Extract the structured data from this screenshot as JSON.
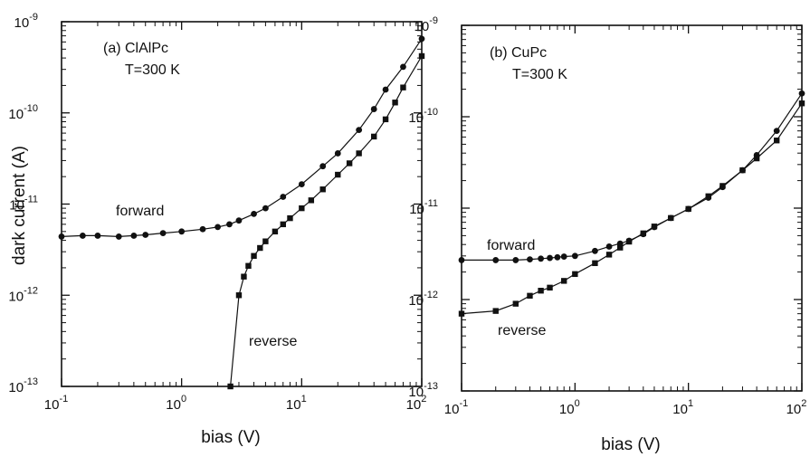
{
  "chart_data": [
    {
      "type": "scatter",
      "panel_label": "(a) ClAlPc",
      "temperature_label": "T=300 K",
      "xlabel": "bias (V)",
      "ylabel": "dark current (A)",
      "xscale": "log",
      "yscale": "log",
      "xlim": [
        0.1,
        100
      ],
      "ylim": [
        1e-13,
        1e-09
      ],
      "xticks": [
        {
          "value": 0.1,
          "base": "10",
          "exp": "-1"
        },
        {
          "value": 1,
          "base": "10",
          "exp": "0"
        },
        {
          "value": 10,
          "base": "10",
          "exp": "1"
        },
        {
          "value": 100,
          "base": "10",
          "exp": "2"
        }
      ],
      "yticks": [
        {
          "value": 1e-13,
          "base": "10",
          "exp": "-13"
        },
        {
          "value": 1e-12,
          "base": "10",
          "exp": "-12"
        },
        {
          "value": 1e-11,
          "base": "10",
          "exp": "-11"
        },
        {
          "value": 1e-10,
          "base": "10",
          "exp": "-10"
        },
        {
          "value": 1e-09,
          "base": "10",
          "exp": "-9"
        }
      ],
      "series": [
        {
          "name": "forward",
          "marker": "circle",
          "x": [
            0.1,
            0.15,
            0.2,
            0.3,
            0.4,
            0.5,
            0.7,
            1.0,
            1.5,
            2.0,
            2.5,
            3.0,
            4.0,
            5.0,
            7.0,
            10,
            15,
            20,
            30,
            40,
            50,
            70,
            100
          ],
          "y": [
            4.4e-12,
            4.5e-12,
            4.5e-12,
            4.4e-12,
            4.5e-12,
            4.6e-12,
            4.8e-12,
            5e-12,
            5.3e-12,
            5.6e-12,
            6e-12,
            6.6e-12,
            7.8e-12,
            9e-12,
            1.2e-11,
            1.65e-11,
            2.6e-11,
            3.6e-11,
            6.5e-11,
            1.1e-10,
            1.8e-10,
            3.2e-10,
            6.5e-10
          ]
        },
        {
          "name": "reverse",
          "marker": "square",
          "x": [
            2.55,
            3.0,
            3.3,
            3.6,
            4.0,
            4.5,
            5.0,
            6.0,
            7.0,
            8.0,
            10,
            12,
            15,
            20,
            25,
            30,
            40,
            50,
            60,
            70,
            100
          ],
          "y": [
            1e-13,
            1e-12,
            1.6e-12,
            2.1e-12,
            2.7e-12,
            3.3e-12,
            3.9e-12,
            5e-12,
            6e-12,
            7e-12,
            9e-12,
            1.1e-11,
            1.45e-11,
            2.1e-11,
            2.8e-11,
            3.6e-11,
            5.5e-11,
            8.5e-11,
            1.3e-10,
            1.9e-10,
            4.2e-10
          ]
        }
      ]
    },
    {
      "type": "scatter",
      "panel_label": "(b) CuPc",
      "temperature_label": "T=300 K",
      "xlabel": "bias (V)",
      "ylabel": "",
      "xscale": "log",
      "yscale": "log",
      "xlim": [
        0.1,
        100
      ],
      "ylim": [
        1e-13,
        1e-09
      ],
      "xticks": [
        {
          "value": 0.1,
          "base": "10",
          "exp": "-1"
        },
        {
          "value": 1,
          "base": "10",
          "exp": "0"
        },
        {
          "value": 10,
          "base": "10",
          "exp": "1"
        },
        {
          "value": 100,
          "base": "10",
          "exp": "2"
        }
      ],
      "yticks": [
        {
          "value": 1e-13,
          "base": "10",
          "exp": "-13"
        },
        {
          "value": 1e-12,
          "base": "10",
          "exp": "-12"
        },
        {
          "value": 1e-11,
          "base": "10",
          "exp": "-11"
        },
        {
          "value": 1e-10,
          "base": "10",
          "exp": "-10"
        },
        {
          "value": 1e-09,
          "base": "10",
          "exp": "-9"
        }
      ],
      "series": [
        {
          "name": "forward",
          "marker": "circle",
          "x": [
            0.1,
            0.2,
            0.3,
            0.4,
            0.5,
            0.6,
            0.7,
            0.8,
            1.0,
            1.5,
            2.0,
            2.5,
            3.0,
            4.0,
            5.0,
            7.0,
            10,
            15,
            20,
            30,
            40,
            60,
            100
          ],
          "y": [
            2.7e-12,
            2.7e-12,
            2.7e-12,
            2.75e-12,
            2.8e-12,
            2.85e-12,
            2.9e-12,
            2.95e-12,
            3e-12,
            3.4e-12,
            3.8e-12,
            4.1e-12,
            4.4e-12,
            5.2e-12,
            6.2e-12,
            7.8e-12,
            9.8e-12,
            1.3e-11,
            1.7e-11,
            2.6e-11,
            3.8e-11,
            7e-11,
            1.8e-10
          ]
        },
        {
          "name": "reverse",
          "marker": "square",
          "x": [
            0.1,
            0.2,
            0.3,
            0.4,
            0.5,
            0.6,
            0.8,
            1.0,
            1.5,
            2.0,
            2.5,
            3.0,
            4.0,
            5.0,
            7.0,
            10,
            15,
            20,
            30,
            40,
            60,
            100
          ],
          "y": [
            7e-13,
            7.5e-13,
            9e-13,
            1.1e-12,
            1.25e-12,
            1.35e-12,
            1.6e-12,
            1.9e-12,
            2.5e-12,
            3.1e-12,
            3.7e-12,
            4.3e-12,
            5.3e-12,
            6.3e-12,
            7.8e-12,
            9.8e-12,
            1.35e-11,
            1.75e-11,
            2.6e-11,
            3.5e-11,
            5.5e-11,
            1.4e-10
          ]
        }
      ]
    }
  ]
}
